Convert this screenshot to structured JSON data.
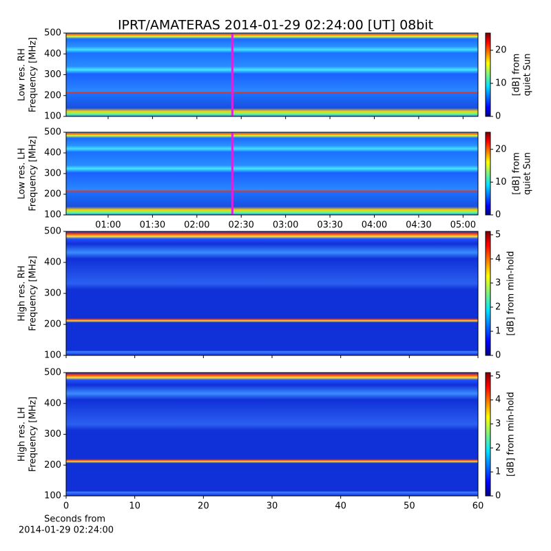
{
  "title": "IPRT/AMATERAS 2014-01-29 02:24:00 [UT]   08bit",
  "chart_data": [
    {
      "type": "heatmap",
      "ylabel": [
        "Low res. RH",
        "Frequency [MHz]"
      ],
      "ylim": [
        100,
        500
      ],
      "yticks": [
        100,
        200,
        300,
        400,
        500
      ],
      "xlim": [
        31.6,
        310.1
      ],
      "cursor": 144,
      "cursor_color": "#e020e0",
      "colorbar_label": [
        "[dB] from",
        "quiet Sun"
      ],
      "clim": [
        0,
        25.2
      ],
      "cticks": [
        0,
        10,
        20
      ]
    },
    {
      "type": "heatmap",
      "ylabel": [
        "Low res. LH",
        "Frequency [MHz]"
      ],
      "ylim": [
        100,
        500
      ],
      "yticks": [
        100,
        200,
        300,
        400,
        500
      ],
      "xlim": [
        31.6,
        310.1
      ],
      "cursor": 144,
      "cursor_color": "#e020e0",
      "xticks": [
        {
          "value": 60,
          "label": "01:00"
        },
        {
          "value": 90,
          "label": "01:30"
        },
        {
          "value": 120,
          "label": "02:00"
        },
        {
          "value": 150,
          "label": "02:30"
        },
        {
          "value": 180,
          "label": "03:00"
        },
        {
          "value": 210,
          "label": "03:30"
        },
        {
          "value": 240,
          "label": "04:00"
        },
        {
          "value": 270,
          "label": "04:30"
        },
        {
          "value": 300,
          "label": "05:00"
        }
      ],
      "colorbar_label": [
        "[dB] from",
        "quiet Sun"
      ],
      "clim": [
        0,
        25.2
      ],
      "cticks": [
        0,
        10,
        20
      ]
    },
    {
      "type": "heatmap",
      "ylabel": [
        "High res. RH",
        "Frequency [MHz]"
      ],
      "ylim": [
        100,
        500
      ],
      "yticks": [
        100,
        200,
        300,
        400,
        500
      ],
      "xlim": [
        0,
        60
      ],
      "colorbar_label": [
        "[dB] from min-hold"
      ],
      "clim": [
        0,
        5.14
      ],
      "cticks": [
        0,
        1,
        2,
        3,
        4,
        5
      ]
    },
    {
      "type": "heatmap",
      "ylabel": [
        "High res. LH",
        "Frequency [MHz]"
      ],
      "ylim": [
        100,
        500
      ],
      "yticks": [
        100,
        200,
        300,
        400,
        500
      ],
      "xlim": [
        0,
        60
      ],
      "xticks": [
        0,
        10,
        20,
        30,
        40,
        50,
        60
      ],
      "xlabel": [
        "Seconds from",
        "2014-01-29 02:24:00"
      ],
      "colorbar_label": [
        "[dB] from min-hold"
      ],
      "clim": [
        0,
        5.14
      ],
      "cticks": [
        0,
        1,
        2,
        3,
        4,
        5
      ]
    }
  ]
}
